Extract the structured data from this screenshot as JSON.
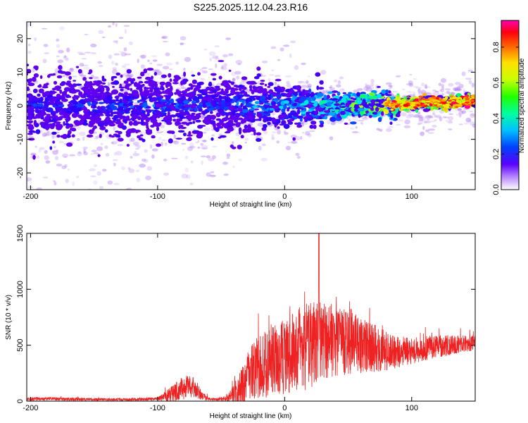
{
  "title": "S225.2025.112.04.23.R16",
  "chart_data": [
    {
      "type": "heatmap",
      "xlabel": "Height of straight line (km)",
      "ylabel": "Frequency (Hz)",
      "xlim": [
        -203,
        150
      ],
      "ylim": [
        -25,
        25
      ],
      "x_ticks": [
        "-200",
        "-100",
        "0",
        "100"
      ],
      "x_tick_values": [
        -200,
        -100,
        0,
        100
      ],
      "y_ticks": [
        "-20",
        "-10",
        "0",
        "10",
        "20"
      ],
      "y_tick_values": [
        -20,
        -10,
        0,
        10,
        20
      ],
      "colorbar": {
        "label": "Normalized spectral amplitude",
        "range": [
          0,
          0.95
        ],
        "ticks": [
          "0.0",
          "0.2",
          "0.4",
          "0.6",
          "0.8"
        ],
        "tick_values": [
          0,
          0.2,
          0.4,
          0.6,
          0.8
        ],
        "colormap": [
          "#ffffff",
          "#7a00e6",
          "#2a00ff",
          "#0066ff",
          "#00e0ff",
          "#00ff66",
          "#aaff00",
          "#ffee00",
          "#ff7a00",
          "#ff0000",
          "#ff00aa"
        ]
      },
      "band": {
        "x": [
          -200,
          -150,
          -100,
          -50,
          0,
          50,
          100,
          150
        ],
        "center_freq": [
          0,
          0,
          0,
          0,
          0,
          0,
          0.5,
          1.5
        ],
        "amplitude": [
          0.15,
          0.17,
          0.2,
          0.2,
          0.3,
          0.45,
          0.7,
          0.9
        ]
      }
    },
    {
      "type": "line",
      "xlabel": "Height of straight line (km)",
      "ylabel": "SNR (10 * v/v)",
      "xlim": [
        -203,
        150
      ],
      "ylim": [
        0,
        1500
      ],
      "x_ticks": [
        "-200",
        "-100",
        "0",
        "100"
      ],
      "x_tick_values": [
        -200,
        -100,
        0,
        100
      ],
      "y_ticks": [
        "0",
        "500",
        "1000",
        "1500"
      ],
      "y_tick_values": [
        0,
        500,
        1000,
        1500
      ],
      "color": "#ee2222",
      "envelope": {
        "x": [
          -203,
          -180,
          -150,
          -120,
          -100,
          -95,
          -90,
          -85,
          -80,
          -75,
          -70,
          -65,
          -60,
          -55,
          -50,
          -45,
          -40,
          -35,
          -30,
          -25,
          -20,
          -15,
          -10,
          -5,
          0,
          5,
          10,
          15,
          20,
          25,
          30,
          35,
          40,
          50,
          60,
          70,
          80,
          90,
          100,
          110,
          120,
          130,
          140,
          150
        ],
        "base": [
          20,
          20,
          15,
          15,
          20,
          40,
          60,
          90,
          120,
          130,
          100,
          50,
          20,
          15,
          20,
          30,
          60,
          120,
          200,
          260,
          300,
          330,
          360,
          380,
          400,
          420,
          450,
          480,
          500,
          520,
          530,
          540,
          540,
          530,
          500,
          470,
          450,
          440,
          450,
          470,
          490,
          500,
          510,
          520
        ],
        "spread": [
          15,
          15,
          12,
          12,
          15,
          40,
          70,
          90,
          110,
          100,
          80,
          40,
          15,
          12,
          20,
          40,
          90,
          150,
          220,
          260,
          280,
          300,
          320,
          330,
          340,
          350,
          370,
          390,
          400,
          380,
          360,
          340,
          320,
          290,
          250,
          220,
          180,
          140,
          120,
          110,
          100,
          90,
          80,
          70
        ]
      },
      "peak": {
        "x": 27,
        "y": 1500
      }
    }
  ]
}
